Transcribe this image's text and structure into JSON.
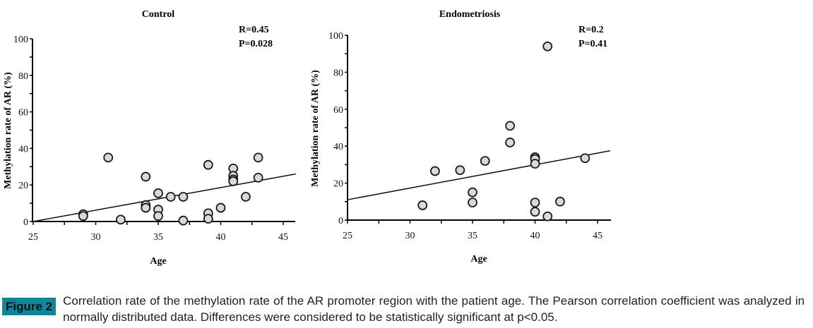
{
  "chart_data": [
    {
      "type": "scatter",
      "title": "Control",
      "xlabel": "Age",
      "ylabel": "Methylation rate of AR (%)",
      "xlim": [
        25,
        46
      ],
      "ylim": [
        0,
        100
      ],
      "xticks": [
        25,
        30,
        35,
        40,
        45
      ],
      "yticks": [
        0,
        20,
        40,
        60,
        80,
        100
      ],
      "grid": false,
      "annotations": [
        "R=0.45",
        "P=0.028"
      ],
      "series": [
        {
          "name": "Control",
          "points": [
            {
              "x": 29,
              "y": 4
            },
            {
              "x": 29,
              "y": 3
            },
            {
              "x": 31,
              "y": 35
            },
            {
              "x": 32,
              "y": 1
            },
            {
              "x": 34,
              "y": 24.5
            },
            {
              "x": 34,
              "y": 9
            },
            {
              "x": 34,
              "y": 7.5
            },
            {
              "x": 35,
              "y": 15.5
            },
            {
              "x": 35,
              "y": 6.5
            },
            {
              "x": 35,
              "y": 3
            },
            {
              "x": 36,
              "y": 13.5
            },
            {
              "x": 37,
              "y": 13.5
            },
            {
              "x": 37,
              "y": 0.5
            },
            {
              "x": 39,
              "y": 31
            },
            {
              "x": 39,
              "y": 4.5
            },
            {
              "x": 39,
              "y": 1.5
            },
            {
              "x": 40,
              "y": 7.5
            },
            {
              "x": 41,
              "y": 29
            },
            {
              "x": 41,
              "y": 25
            },
            {
              "x": 41,
              "y": 23
            },
            {
              "x": 41,
              "y": 22
            },
            {
              "x": 42,
              "y": 13.5
            },
            {
              "x": 43,
              "y": 35
            },
            {
              "x": 43,
              "y": 24
            }
          ]
        }
      ],
      "trendline": {
        "x": [
          25,
          46
        ],
        "y": [
          0,
          26
        ]
      }
    },
    {
      "type": "scatter",
      "title": "Endometriosis",
      "xlabel": "Age",
      "ylabel": "Methylation rate of AR (%)",
      "xlim": [
        25,
        46
      ],
      "ylim": [
        0,
        100
      ],
      "xticks": [
        25,
        30,
        35,
        40,
        45
      ],
      "yticks": [
        0,
        20,
        40,
        60,
        80,
        100
      ],
      "grid": false,
      "annotations": [
        "R=0.2",
        "P=0.41"
      ],
      "series": [
        {
          "name": "Endometriosis",
          "points": [
            {
              "x": 31,
              "y": 8
            },
            {
              "x": 32,
              "y": 26.5
            },
            {
              "x": 34,
              "y": 27
            },
            {
              "x": 35,
              "y": 15
            },
            {
              "x": 35,
              "y": 9.5
            },
            {
              "x": 36,
              "y": 32
            },
            {
              "x": 38,
              "y": 51
            },
            {
              "x": 38,
              "y": 42
            },
            {
              "x": 40,
              "y": 34
            },
            {
              "x": 40,
              "y": 33
            },
            {
              "x": 40,
              "y": 30.5
            },
            {
              "x": 40,
              "y": 9.5
            },
            {
              "x": 40,
              "y": 4.5
            },
            {
              "x": 41,
              "y": 94
            },
            {
              "x": 41,
              "y": 2
            },
            {
              "x": 42,
              "y": 10
            },
            {
              "x": 44,
              "y": 33.5
            }
          ]
        }
      ],
      "trendline": {
        "x": [
          25,
          46
        ],
        "y": [
          11,
          37.5
        ]
      }
    }
  ],
  "figure": {
    "label": "Figure 2",
    "label_color": "#10869a",
    "caption": "Correlation rate of the methylation rate of the AR promoter region with the patient age. The Pearson correlation coefficient was analyzed in normally distributed data. Differences were considered to be statistically significant at p<0.05."
  },
  "colors": {
    "marker_fill": "#d9d9d9",
    "marker_stroke": "#1a1a1a",
    "axis": "#000000"
  }
}
